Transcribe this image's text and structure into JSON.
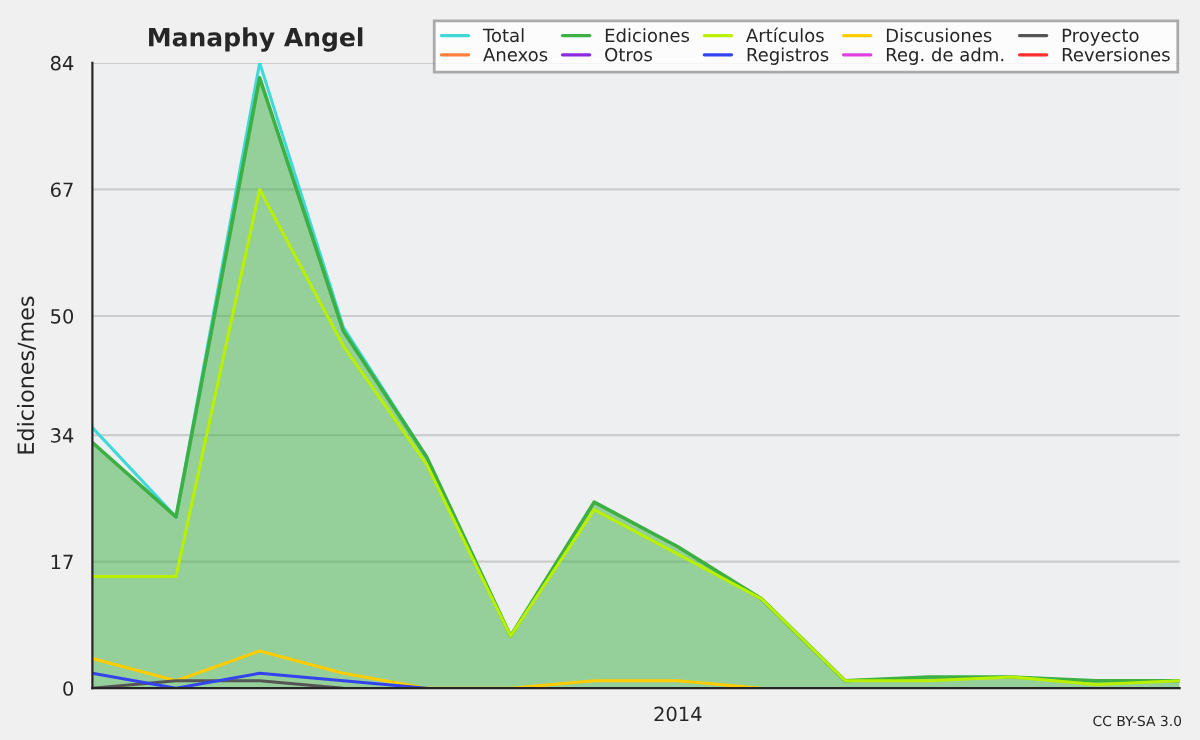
{
  "chart_data": {
    "type": "line",
    "title": "Manaphy Angel",
    "ylabel": "Ediciones/mes",
    "categories": [
      null,
      null,
      null,
      null,
      null,
      null,
      null,
      "2014",
      null,
      null,
      null,
      null,
      null,
      null
    ],
    "series": [
      {
        "name": "Total",
        "color": "#40d8d8",
        "values": [
          35,
          23,
          84,
          48.5,
          31,
          null,
          null,
          null,
          null,
          null,
          null,
          null,
          null,
          null
        ]
      },
      {
        "name": "Ediciones",
        "color": "#3cb043",
        "type": "area",
        "values": [
          33,
          23,
          82,
          48,
          31,
          7,
          25,
          19,
          12,
          1,
          1.5,
          1.5,
          1,
          1
        ]
      },
      {
        "name": "Artículos",
        "color": "#b8f000",
        "values": [
          15,
          15,
          67,
          46,
          30,
          7,
          24,
          18,
          12,
          1,
          1,
          1.5,
          0.5,
          1
        ]
      },
      {
        "name": "Discusiones",
        "color": "#ffcc00",
        "values": [
          4,
          1,
          5,
          2,
          0,
          0,
          1,
          1,
          0,
          null,
          null,
          null,
          null,
          null
        ]
      },
      {
        "name": "Proyecto",
        "color": "#555555",
        "values": [
          0,
          1,
          1,
          0,
          null,
          null,
          null,
          null,
          null,
          null,
          null,
          null,
          null,
          null
        ]
      },
      {
        "name": "Anexos",
        "color": "#ff7f3f",
        "values": [
          null,
          null,
          null,
          null,
          null,
          null,
          null,
          null,
          null,
          null,
          null,
          null,
          null,
          null
        ]
      },
      {
        "name": "Otros",
        "color": "#8a2be2",
        "values": [
          null,
          null,
          null,
          null,
          null,
          null,
          null,
          null,
          null,
          null,
          null,
          null,
          null,
          null
        ]
      },
      {
        "name": "Registros",
        "color": "#3344ee",
        "values": [
          2,
          0,
          2,
          1,
          0,
          null,
          null,
          null,
          null,
          null,
          null,
          null,
          null,
          null
        ]
      },
      {
        "name": "Reg. de adm.",
        "color": "#e040e0",
        "values": [
          null,
          null,
          null,
          null,
          null,
          null,
          null,
          null,
          null,
          null,
          null,
          null,
          null,
          null
        ]
      },
      {
        "name": "Reversiones",
        "color": "#ff3030",
        "values": [
          null,
          null,
          null,
          null,
          null,
          null,
          null,
          null,
          null,
          null,
          null,
          null,
          null,
          null
        ]
      }
    ],
    "ylim": [
      0,
      84
    ],
    "yticks": [
      0,
      17,
      34,
      50,
      67,
      84
    ],
    "grid": "y",
    "legend": "top right",
    "annotations": [
      "CC BY-SA 3.0"
    ]
  }
}
